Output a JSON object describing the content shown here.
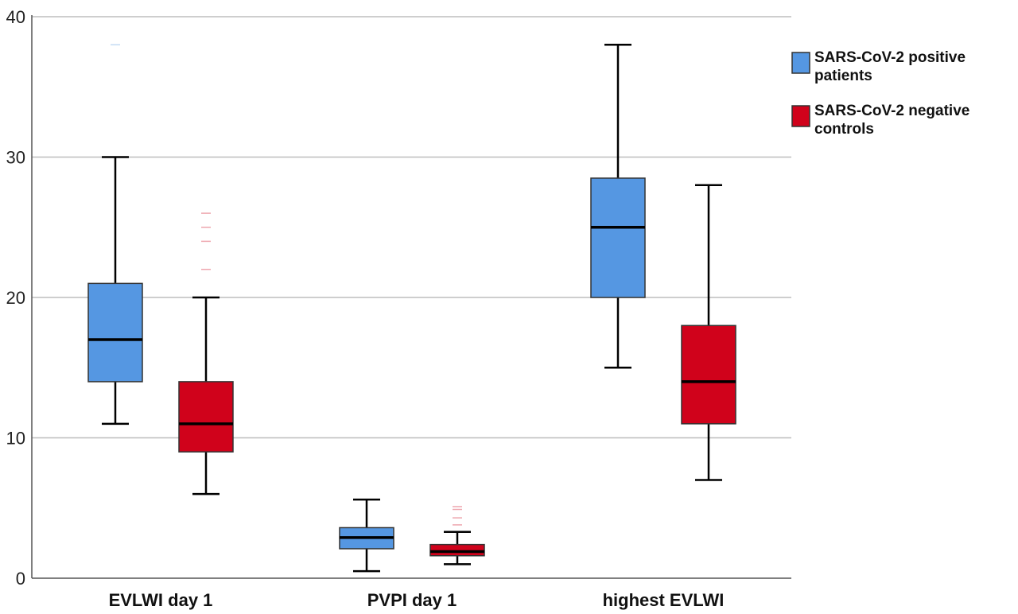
{
  "chart_data": {
    "type": "boxplot",
    "categories": [
      "EVLWI day 1",
      "PVPI day 1",
      "highest EVLWI"
    ],
    "ylim": [
      0,
      40
    ],
    "yticks": [
      0,
      10,
      20,
      30,
      40
    ],
    "grid": true,
    "legend_position": "top-right",
    "series": [
      {
        "name": [
          "SARS-CoV-2 positive",
          "patients"
        ],
        "color": "#5597e2",
        "boxes": [
          {
            "min": 11,
            "q1": 14,
            "median": 17,
            "q3": 21,
            "max": 30,
            "outliers": [
              38
            ]
          },
          {
            "min": 0.5,
            "q1": 2.1,
            "median": 2.9,
            "q3": 3.6,
            "max": 5.6,
            "outliers": []
          },
          {
            "min": 15,
            "q1": 20,
            "median": 25,
            "q3": 28.5,
            "max": 38,
            "outliers": []
          }
        ]
      },
      {
        "name": [
          "SARS-CoV-2 negative",
          "controls"
        ],
        "color": "#d0021b",
        "boxes": [
          {
            "min": 6,
            "q1": 9,
            "median": 11,
            "q3": 14,
            "max": 20,
            "outliers": [
              22,
              24,
              25,
              26
            ]
          },
          {
            "min": 1,
            "q1": 1.6,
            "median": 1.9,
            "q3": 2.4,
            "max": 3.3,
            "outliers": [
              3.8,
              4.3,
              4.9,
              5.1
            ]
          },
          {
            "min": 7,
            "q1": 11,
            "median": 14,
            "q3": 18,
            "max": 28,
            "outliers": []
          }
        ]
      }
    ]
  }
}
